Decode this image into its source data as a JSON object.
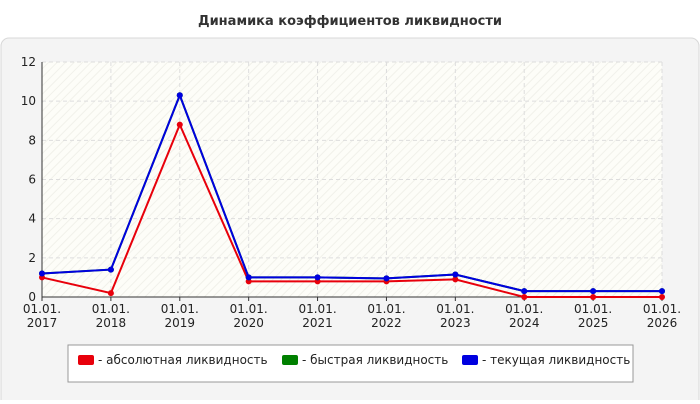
{
  "chart_data": {
    "type": "line",
    "title": "Динамика коэффициентов ликвидности",
    "categories": [
      [
        "01.01.",
        "2017"
      ],
      [
        "01.01.",
        "2018"
      ],
      [
        "01.01.",
        "2019"
      ],
      [
        "01.01.",
        "2020"
      ],
      [
        "01.01.",
        "2021"
      ],
      [
        "01.01.",
        "2022"
      ],
      [
        "01.01.",
        "2023"
      ],
      [
        "01.01.",
        "2024"
      ],
      [
        "01.01.",
        "2025"
      ],
      [
        "01.01.",
        "2026"
      ]
    ],
    "series": [
      {
        "name": "- абсолютная ликвидность",
        "color": "#e8000b",
        "values": [
          1.0,
          0.2,
          8.8,
          0.8,
          0.8,
          0.8,
          0.9,
          0,
          0,
          0
        ]
      },
      {
        "name": "- быстрая ликвидность",
        "color": "#008000",
        "values": [
          1.2,
          1.4,
          10.3,
          1.0,
          1.0,
          0.95,
          1.15,
          0.3,
          0.3,
          0.3
        ]
      },
      {
        "name": "- текущая ликвидность",
        "color": "#0000e0",
        "values": [
          1.2,
          1.4,
          10.3,
          1.0,
          1.0,
          0.95,
          1.15,
          0.3,
          0.3,
          0.3
        ]
      }
    ],
    "ylim": [
      0,
      12
    ],
    "yticks": [
      0,
      2,
      4,
      6,
      8,
      10,
      12
    ],
    "grid": true
  }
}
